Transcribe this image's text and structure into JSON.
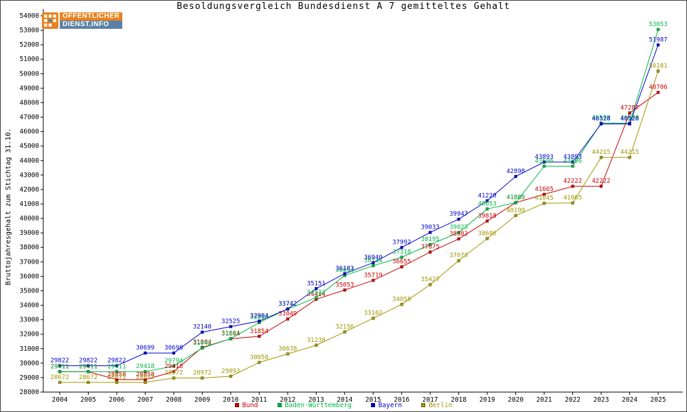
{
  "logo": {
    "line1": "ÖFFENTLICHER",
    "line2": "DIENST.INFO"
  },
  "chart_data": {
    "type": "line",
    "title": "Besoldungsvergleich Bundesdienst A 7 gemitteltes Gehalt",
    "xlabel": "",
    "ylabel": "Bruttojahresgehalt zum Stichtag 31.10.",
    "ylim": [
      28000,
      54000
    ],
    "ytick_step": 1000,
    "grid": false,
    "marker": "square",
    "point_labels": true,
    "legend_position": "bottom",
    "x": [
      2004,
      2005,
      2006,
      2007,
      2008,
      2009,
      2010,
      2011,
      2012,
      2013,
      2014,
      2015,
      2016,
      2017,
      2018,
      2019,
      2020,
      2021,
      2022,
      2023,
      2024,
      2025
    ],
    "series": [
      {
        "name": "Bund",
        "color": "#cc0000",
        "values": [
          29411,
          29411,
          28858,
          28858,
          29418,
          31084,
          31684,
          31854,
          33049,
          34414,
          35053,
          35719,
          36655,
          37675,
          38582,
          39818,
          41089,
          41665,
          42222,
          42222,
          47287,
          48706
        ]
      },
      {
        "name": "Baden-Württemberg",
        "color": "#00b843",
        "values": [
          29411,
          29411,
          29411,
          29418,
          29794,
          31042,
          31691,
          32804,
          33742,
          34522,
          36054,
          36734,
          37318,
          38195,
          39023,
          40653,
          41089,
          43606,
          43606,
          46588,
          46588,
          53053
        ]
      },
      {
        "name": "Bayern",
        "color": "#0000cc",
        "values": [
          29822,
          29822,
          29822,
          30699,
          30698,
          32140,
          32525,
          32904,
          33742,
          35151,
          36183,
          36940,
          37992,
          39033,
          39947,
          41220,
          42898,
          43893,
          43893,
          46528,
          46528,
          51987
        ]
      },
      {
        "name": "Berlin",
        "color": "#a09600",
        "values": [
          28672,
          28672,
          28672,
          28672,
          28972,
          28972,
          29093,
          30050,
          30638,
          31238,
          32156,
          33102,
          34058,
          35427,
          37078,
          38606,
          40199,
          41045,
          41065,
          44215,
          44215,
          50181
        ]
      }
    ]
  }
}
